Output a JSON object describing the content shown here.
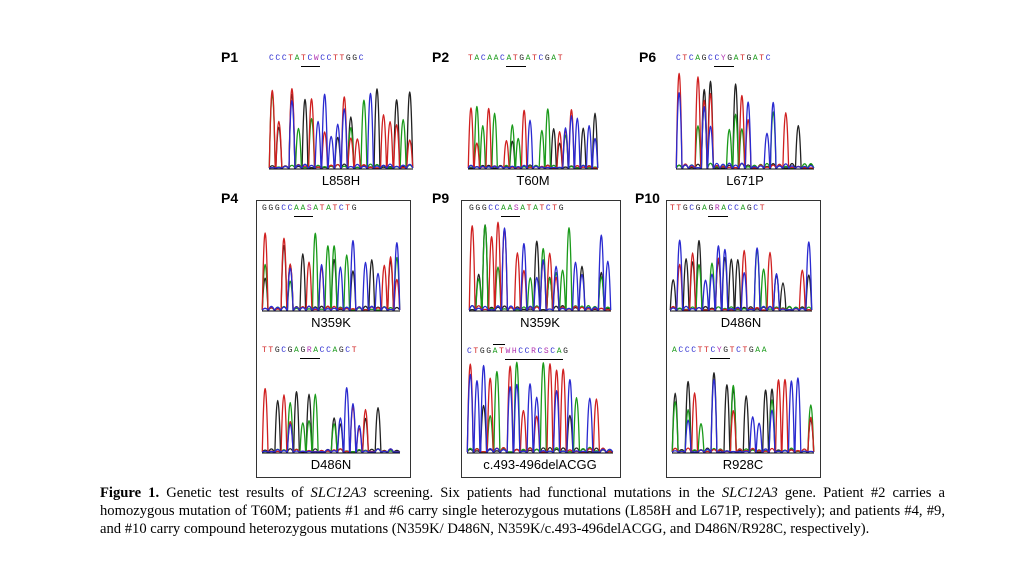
{
  "figure": {
    "panels": [
      {
        "id": "P1",
        "label": "P1",
        "seq": "CCCTATCWCCTTGGC",
        "mutation": "L858H",
        "underline": [
          5,
          8
        ],
        "overline": []
      },
      {
        "id": "P2",
        "label": "P2",
        "seq": "TACAACATGATCGAT",
        "mutation": "T60M",
        "underline": [
          6,
          9
        ],
        "overline": []
      },
      {
        "id": "P6",
        "label": "P6",
        "seq": "CTCAGCCYGATGATC",
        "mutation": "L671P",
        "underline": [
          6,
          9
        ],
        "overline": []
      },
      {
        "id": "P4a",
        "label": "P4",
        "seq": "GGGCCAASATATCTG",
        "mutation": "N359K",
        "underline": [
          5,
          8
        ],
        "overline": []
      },
      {
        "id": "P4b",
        "label": "",
        "seq": "TTGCGAGRACCAGCT",
        "mutation": "D486N",
        "underline": [
          6,
          9
        ],
        "overline": []
      },
      {
        "id": "P9a",
        "label": "P9",
        "seq": "GGGCCAASATATCTG",
        "mutation": "N359K",
        "underline": [
          5,
          8
        ],
        "overline": []
      },
      {
        "id": "P9b",
        "label": "",
        "seq": "CTGGATWHCCRCSCAG",
        "mutation": "c.493-496delACGG",
        "underline": [
          6,
          15
        ],
        "overline": [
          4,
          6
        ]
      },
      {
        "id": "P10a",
        "label": "P10",
        "seq": "TTGCGAGRACCAGCT",
        "mutation": "D486N",
        "underline": [
          6,
          9
        ],
        "overline": []
      },
      {
        "id": "P10b",
        "label": "",
        "seq": "ACCCTTCYGTCTGAA",
        "mutation": "R928C",
        "underline": [
          6,
          9
        ],
        "overline": []
      }
    ],
    "base_colors": {
      "A": "#1a9a1a",
      "C": "#2a2ad0",
      "G": "#222222",
      "T": "#d02020",
      "other": "#b030b0"
    },
    "caption": {
      "label": "Figure 1.",
      "text_1": " Genetic test results of ",
      "gene_1": "SLC12A3",
      "text_2": " screening. Six patients had functional mutations in the ",
      "gene_2": "SLC12A3",
      "text_3": " gene. Patient #2 carries a homozygous mutation of T60M; patients #1 and #6 carry single heterozygous mutations (L858H and L671P, respectively); and patients #4, #9, and #10 carry compound heterozygous mutations (N359K/ D486N, N359K/c.493-496delACGG, and D486N/R928C, respectively)."
    }
  }
}
